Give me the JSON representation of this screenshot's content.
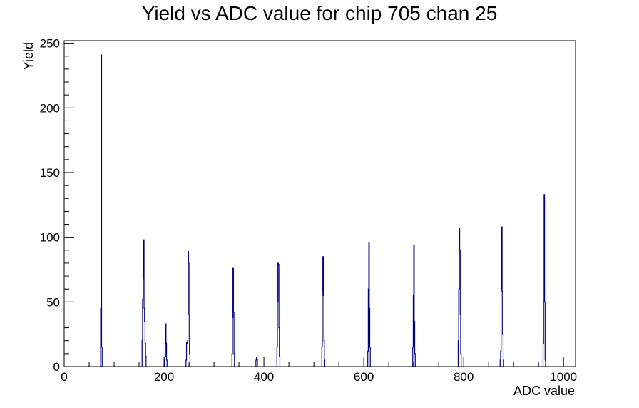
{
  "chart_data": {
    "type": "line",
    "title": "Yield vs ADC value for chip 705 chan 25",
    "xlabel": "ADC value",
    "ylabel": "Yield",
    "xlim": [
      0,
      1024
    ],
    "ylim": [
      0,
      252
    ],
    "x_ticks": [
      0,
      200,
      400,
      600,
      800,
      1000
    ],
    "y_ticks": [
      0,
      50,
      100,
      150,
      200,
      250
    ],
    "x_tick_labels": [
      "0",
      "200",
      "400",
      "600",
      "800",
      "1000"
    ],
    "y_tick_labels": [
      "0",
      "50",
      "100",
      "150",
      "200",
      "250"
    ],
    "series": [
      {
        "color": "#000080",
        "points": [
          [
            72,
            0
          ],
          [
            73,
            45
          ],
          [
            74,
            241
          ],
          [
            75,
            15
          ],
          [
            76,
            0
          ],
          [
            155,
            0
          ],
          [
            156,
            20
          ],
          [
            157,
            52
          ],
          [
            158,
            68
          ],
          [
            159,
            98
          ],
          [
            160,
            45
          ],
          [
            161,
            35
          ],
          [
            162,
            18
          ],
          [
            163,
            8
          ],
          [
            164,
            0
          ],
          [
            200,
            0
          ],
          [
            201,
            5
          ],
          [
            202,
            8
          ],
          [
            203,
            33
          ],
          [
            204,
            18
          ],
          [
            205,
            5
          ],
          [
            206,
            0
          ],
          [
            243,
            0
          ],
          [
            244,
            5
          ],
          [
            245,
            19
          ],
          [
            246,
            18
          ],
          [
            247,
            20
          ],
          [
            248,
            89
          ],
          [
            249,
            80
          ],
          [
            250,
            40
          ],
          [
            251,
            10
          ],
          [
            252,
            0
          ],
          [
            335,
            0
          ],
          [
            336,
            10
          ],
          [
            337,
            38
          ],
          [
            338,
            76
          ],
          [
            339,
            42
          ],
          [
            340,
            10
          ],
          [
            341,
            0
          ],
          [
            383,
            0
          ],
          [
            384,
            5
          ],
          [
            385,
            7
          ],
          [
            386,
            6
          ],
          [
            387,
            0
          ],
          [
            425,
            0
          ],
          [
            426,
            15
          ],
          [
            427,
            50
          ],
          [
            428,
            80
          ],
          [
            429,
            79
          ],
          [
            430,
            30
          ],
          [
            431,
            8
          ],
          [
            432,
            0
          ],
          [
            515,
            0
          ],
          [
            516,
            15
          ],
          [
            517,
            60
          ],
          [
            518,
            85
          ],
          [
            519,
            55
          ],
          [
            520,
            20
          ],
          [
            521,
            5
          ],
          [
            522,
            0
          ],
          [
            607,
            0
          ],
          [
            608,
            12
          ],
          [
            609,
            60
          ],
          [
            610,
            96
          ],
          [
            611,
            45
          ],
          [
            612,
            15
          ],
          [
            613,
            0
          ],
          [
            697,
            0
          ],
          [
            698,
            15
          ],
          [
            699,
            55
          ],
          [
            700,
            94
          ],
          [
            701,
            35
          ],
          [
            702,
            10
          ],
          [
            703,
            0
          ],
          [
            788,
            0
          ],
          [
            789,
            20
          ],
          [
            790,
            60
          ],
          [
            791,
            107
          ],
          [
            792,
            90
          ],
          [
            793,
            40
          ],
          [
            794,
            10
          ],
          [
            795,
            0
          ],
          [
            872,
            0
          ],
          [
            873,
            5
          ],
          [
            874,
            12
          ],
          [
            875,
            60
          ],
          [
            876,
            108
          ],
          [
            877,
            58
          ],
          [
            878,
            25
          ],
          [
            879,
            5
          ],
          [
            880,
            0
          ],
          [
            958,
            0
          ],
          [
            959,
            18
          ],
          [
            960,
            50
          ],
          [
            961,
            133
          ],
          [
            962,
            50
          ],
          [
            963,
            5
          ],
          [
            964,
            0
          ]
        ]
      }
    ],
    "grid": false,
    "legend": "none"
  }
}
